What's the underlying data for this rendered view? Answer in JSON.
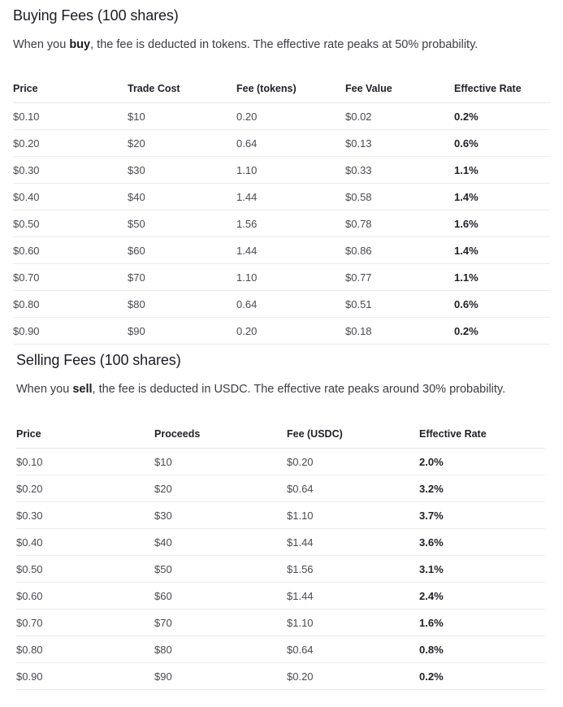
{
  "buying": {
    "title": "Buying Fees (100 shares)",
    "intro_before": "When you ",
    "intro_bold": "buy",
    "intro_after": ", the fee is deducted in tokens. The effective rate peaks at 50% probability.",
    "headers": [
      "Price",
      "Trade Cost",
      "Fee (tokens)",
      "Fee Value",
      "Effective Rate"
    ],
    "rows": [
      [
        "$0.10",
        "$10",
        "0.20",
        "$0.02",
        "0.2%"
      ],
      [
        "$0.20",
        "$20",
        "0.64",
        "$0.13",
        "0.6%"
      ],
      [
        "$0.30",
        "$30",
        "1.10",
        "$0.33",
        "1.1%"
      ],
      [
        "$0.40",
        "$40",
        "1.44",
        "$0.58",
        "1.4%"
      ],
      [
        "$0.50",
        "$50",
        "1.56",
        "$0.78",
        "1.6%"
      ],
      [
        "$0.60",
        "$60",
        "1.44",
        "$0.86",
        "1.4%"
      ],
      [
        "$0.70",
        "$70",
        "1.10",
        "$0.77",
        "1.1%"
      ],
      [
        "$0.80",
        "$80",
        "0.64",
        "$0.51",
        "0.6%"
      ],
      [
        "$0.90",
        "$90",
        "0.20",
        "$0.18",
        "0.2%"
      ]
    ]
  },
  "selling": {
    "title": "Selling Fees (100 shares)",
    "intro_before": "When you ",
    "intro_bold": "sell",
    "intro_after": ", the fee is deducted in USDC. The effective rate peaks around 30% probability.",
    "headers": [
      "Price",
      "Proceeds",
      "Fee (USDC)",
      "Effective Rate"
    ],
    "rows": [
      [
        "$0.10",
        "$10",
        "$0.20",
        "2.0%"
      ],
      [
        "$0.20",
        "$20",
        "$0.64",
        "3.2%"
      ],
      [
        "$0.30",
        "$30",
        "$1.10",
        "3.7%"
      ],
      [
        "$0.40",
        "$40",
        "$1.44",
        "3.6%"
      ],
      [
        "$0.50",
        "$50",
        "$1.56",
        "3.1%"
      ],
      [
        "$0.60",
        "$60",
        "$1.44",
        "2.4%"
      ],
      [
        "$0.70",
        "$70",
        "$1.10",
        "1.6%"
      ],
      [
        "$0.80",
        "$80",
        "$0.64",
        "0.8%"
      ],
      [
        "$0.90",
        "$90",
        "$0.20",
        "0.2%"
      ]
    ]
  }
}
